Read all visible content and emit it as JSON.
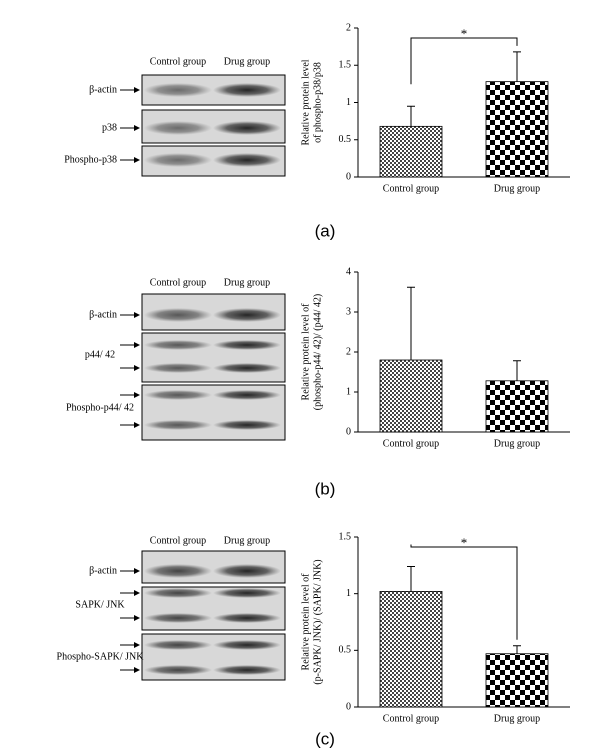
{
  "chart_data": [
    {
      "type": "bar",
      "caption": "(a)",
      "ylabel": [
        "Relative protein level",
        "of phospho-p38/p38"
      ],
      "categories": [
        "Control group",
        "Drug group"
      ],
      "values": [
        0.68,
        1.28
      ],
      "errors": [
        0.27,
        0.4
      ],
      "ylim": [
        0,
        2
      ],
      "yticks": [
        0,
        0.5,
        1,
        1.5,
        2
      ],
      "annotation": "*"
    },
    {
      "type": "bar",
      "caption": "(b)",
      "ylabel": [
        "Relative protein level of",
        "(phospho-p44/ 42)/ (p44/ 42)"
      ],
      "categories": [
        "Control group",
        "Drug group"
      ],
      "values": [
        1.8,
        1.28
      ],
      "errors": [
        1.82,
        0.5
      ],
      "ylim": [
        0,
        4
      ],
      "yticks": [
        0,
        1,
        2,
        3,
        4
      ]
    },
    {
      "type": "bar",
      "caption": "(c)",
      "ylabel": [
        "Relative protein level of",
        "(p-SAPK/ JNK)/ (SAPK/ JNK)"
      ],
      "categories": [
        "Control group",
        "Drug group"
      ],
      "values": [
        1.02,
        0.47
      ],
      "errors": [
        0.22,
        0.07
      ],
      "ylim": [
        0,
        1.5
      ],
      "yticks": [
        0,
        0.5,
        1,
        1.5
      ],
      "annotation": "*"
    }
  ],
  "blots": [
    {
      "columns": [
        "Control group",
        "Drug group"
      ],
      "rows": [
        "β-actin",
        "p38",
        "Phospho-p38"
      ]
    },
    {
      "columns": [
        "Control group",
        "Drug group"
      ],
      "rows": [
        "β-actin",
        "p44/ 42",
        "Phospho-p44/ 42"
      ]
    },
    {
      "columns": [
        "Control group",
        "Drug group"
      ],
      "rows": [
        "β-actin",
        "SAPK/ JNK",
        "Phospho-SAPK/ JNK"
      ]
    }
  ]
}
